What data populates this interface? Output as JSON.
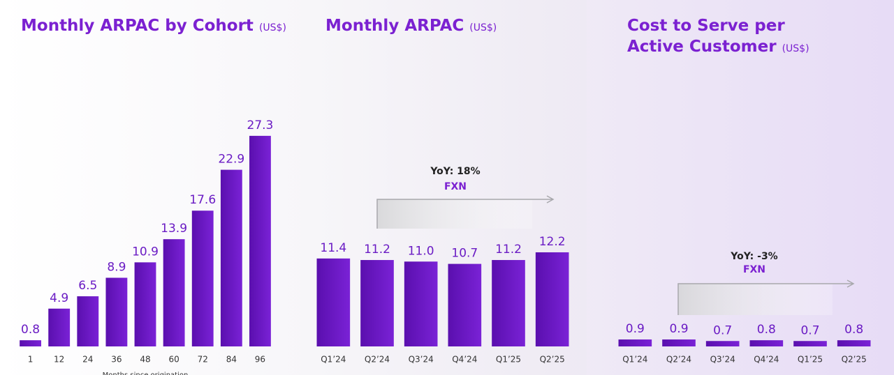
{
  "chart_data": [
    {
      "type": "bar",
      "title": "Monthly ARPAC by Cohort",
      "unit": "(US$)",
      "x_label": "Months since origination",
      "categories": [
        "1",
        "12",
        "24",
        "36",
        "48",
        "60",
        "72",
        "84",
        "96"
      ],
      "values": [
        0.8,
        4.9,
        6.5,
        8.9,
        10.9,
        13.9,
        17.6,
        22.9,
        27.3
      ],
      "ylim": [
        0,
        30
      ],
      "color": "#6514c4"
    },
    {
      "type": "bar",
      "title": "Monthly ARPAC",
      "unit": "(US$)",
      "categories": [
        "Q1’24",
        "Q2’24",
        "Q3’24",
        "Q4’24",
        "Q1’25",
        "Q2’25"
      ],
      "values": [
        11.4,
        11.2,
        11.0,
        10.7,
        11.2,
        12.2
      ],
      "value_labels": [
        "11.4",
        "11.2",
        "11.0",
        "10.7",
        "11.2",
        "12.2"
      ],
      "annotations": [
        "YoY: 18%",
        "FXN"
      ],
      "ylim": [
        0,
        30
      ],
      "color": "#6514c4"
    },
    {
      "type": "bar",
      "title": "Cost to Serve per Active Customer",
      "unit": "(US$)",
      "categories": [
        "Q1’24",
        "Q2’24",
        "Q3’24",
        "Q4’24",
        "Q1’25",
        "Q2’25"
      ],
      "values": [
        0.9,
        0.9,
        0.7,
        0.8,
        0.7,
        0.8
      ],
      "annotations": [
        "YoY: -3%",
        "FXN"
      ],
      "ylim": [
        0,
        30
      ],
      "color": "#6514c4"
    }
  ]
}
